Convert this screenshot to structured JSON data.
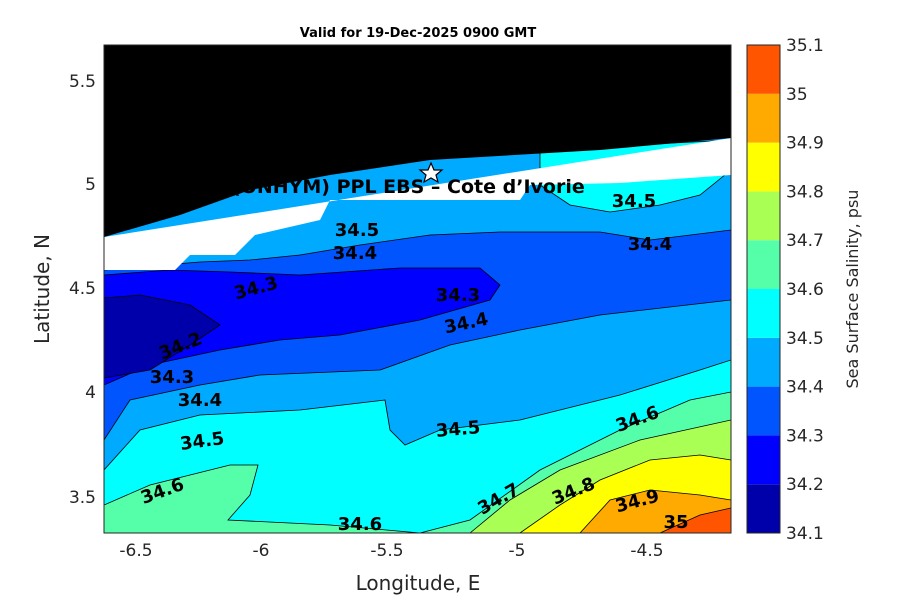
{
  "chart_data": {
    "type": "heatmap",
    "subtype": "filled contour map",
    "title": "Valid for 19-Dec-2025 0900 GMT",
    "xlabel": "Longitude, E",
    "ylabel": "Latitude, N",
    "xlim": [
      -6.63,
      -4.17
    ],
    "ylim": [
      3.33,
      5.67
    ],
    "x_ticks": [
      "-6.5",
      "-6",
      "-5.5",
      "-5",
      "-4.5"
    ],
    "y_ticks": [
      "5.5",
      "5",
      "4.5",
      "4",
      "3.5"
    ],
    "colorbar": {
      "label": "Sea Surface Salinity, psu",
      "ticks": [
        "35.1",
        "35",
        "34.9",
        "34.8",
        "34.7",
        "34.6",
        "34.5",
        "34.4",
        "34.3",
        "34.2",
        "34.1"
      ],
      "levels": [
        34.1,
        34.2,
        34.3,
        34.4,
        34.5,
        34.6,
        34.7,
        34.8,
        34.9,
        35.0,
        35.1
      ],
      "colors": [
        "#0000aa",
        "#0000ff",
        "#0055ff",
        "#00aaff",
        "#00ffff",
        "#55ffaa",
        "#aaff55",
        "#ffff00",
        "#ffaa00",
        "#ff5500"
      ]
    },
    "annotation": "(ONHYM) PPL EBS  – Cote d’Ivorie",
    "marker": "star",
    "contour_labels": [
      "34.5",
      "34.4",
      "34.5",
      "34.4",
      "34.3",
      "34.3",
      "34.4",
      "34.2",
      "34.3",
      "34.4",
      "34.5",
      "34.5",
      "34.6",
      "34.6",
      "34.6",
      "34.7",
      "34.8",
      "34.9",
      "35"
    ],
    "land_color": "#000000",
    "nodata_color": "#ffffff"
  }
}
